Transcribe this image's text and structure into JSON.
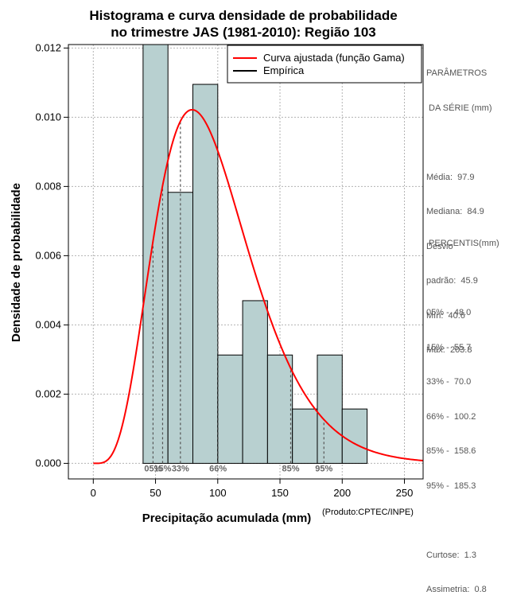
{
  "chart_data": {
    "type": "bar",
    "title_line1": "Histograma e curva densidade de probabilidade",
    "title_line2": "no trimestre JAS (1981-2010): Região 103",
    "xlabel": "Precipitação acumulada (mm)",
    "ylabel": "Densidade de probabilidade",
    "xlim": [
      -20,
      265
    ],
    "ylim": [
      -0.00045,
      0.0121
    ],
    "x_ticks": [
      0,
      50,
      100,
      150,
      200,
      250
    ],
    "x_tick_labels": [
      "0",
      "50",
      "100",
      "150",
      "200",
      "250"
    ],
    "y_ticks": [
      0,
      0.002,
      0.004,
      0.006,
      0.008,
      0.01,
      0.012
    ],
    "y_tick_labels": [
      "0.000",
      "0.002",
      "0.004",
      "0.006",
      "0.008",
      "0.010",
      "0.012"
    ],
    "histogram": {
      "bin_edges": [
        40,
        60,
        80,
        100,
        120,
        140,
        160,
        180,
        200,
        220
      ],
      "densities": [
        0.0121,
        0.00783,
        0.01095,
        0.00313,
        0.0047,
        0.00313,
        0.00157,
        0.00313,
        0.00157
      ],
      "fill": "#b8d0d0"
    },
    "gamma_fit": {
      "shape": 5.3,
      "scale": 18.47,
      "color": "#ff0000",
      "x_max": 265
    },
    "percentile_lines": [
      {
        "label": "05%",
        "x": 48.0
      },
      {
        "label": "15%",
        "x": 55.7
      },
      {
        "label": "33%",
        "x": 70.0
      },
      {
        "label": "66%",
        "x": 100.2
      },
      {
        "label": "85%",
        "x": 158.6
      },
      {
        "label": "95%",
        "x": 185.3
      }
    ],
    "legend": [
      {
        "label": "Curva ajustada (função Gama)",
        "color": "#ff0000"
      },
      {
        "label": "Empírica",
        "color": "#000000"
      }
    ]
  },
  "side_panel": {
    "params_title_1": "PARÂMETROS",
    "params_title_2": " DA SÉRIE (mm)",
    "media": "Média:  97.9",
    "mediana": "Mediana:  84.9",
    "desvio_1": "Desvio",
    "desvio_2": "padrão:  45.9",
    "min": "Mín:  40.6",
    "max": "Máx:  203.8",
    "percentis_title": " PERCENTIS(mm)",
    "p05": "05% -  48.0",
    "p15": "15% -  55.7",
    "p33": "33% -  70.0",
    "p66": "66% -  100.2",
    "p85": "85% -  158.6",
    "p95": "95% -  185.3",
    "curtose": "Curtose:  1.3",
    "assimetria": "Assimetria:  0.8"
  },
  "credit": "(Produto:CPTEC/INPE)"
}
